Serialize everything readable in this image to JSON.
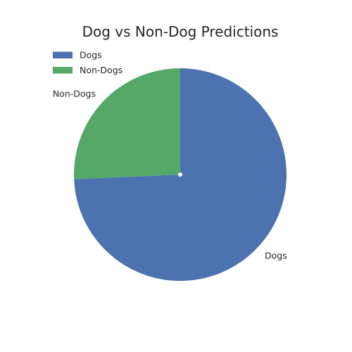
{
  "chart_data": {
    "type": "pie",
    "title": "Dog vs Non-Dog Predictions",
    "labels": [
      "Dogs",
      "Non-Dogs"
    ],
    "values": [
      74.3,
      25.7
    ],
    "colors": [
      "#4C72B0",
      "#55A868"
    ],
    "start_angle_deg": 90,
    "direction": "clockwise",
    "legend_position": "top-left"
  }
}
